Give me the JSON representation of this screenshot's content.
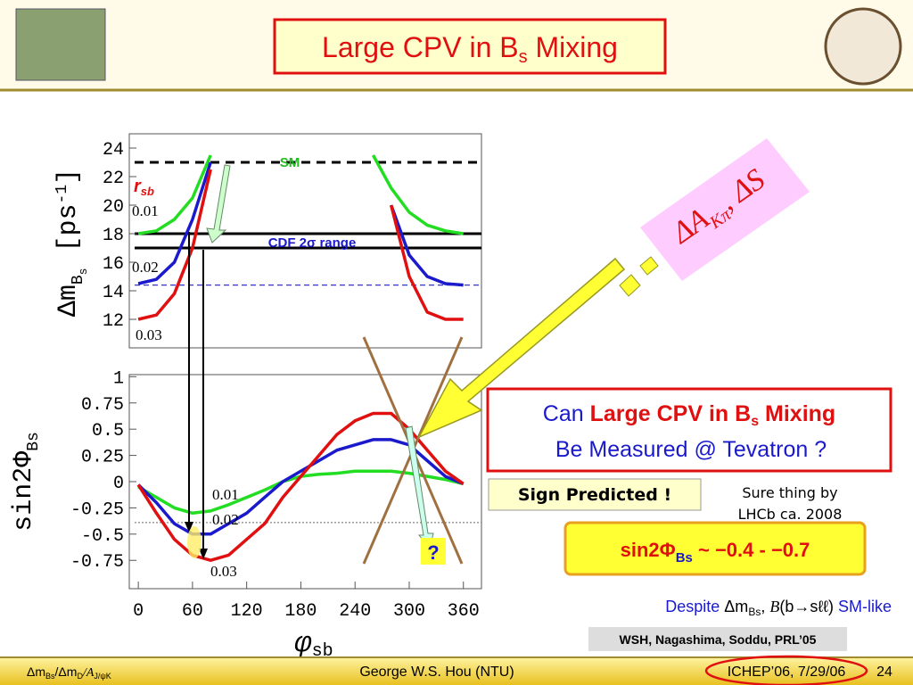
{
  "chart_data": [
    {
      "type": "line",
      "ylabel": {
        "main": "Δm",
        "sub": "B",
        "subsub": "s",
        "rest": " [ps",
        "sup": "-1",
        "end": "]"
      },
      "x": [
        0,
        20,
        40,
        60,
        80,
        100,
        120,
        140,
        160,
        180,
        200,
        220,
        240,
        260,
        280,
        300,
        320,
        340,
        360
      ],
      "xlim": [
        -10,
        380
      ],
      "ylim": [
        10,
        25
      ],
      "yticks": [
        12,
        14,
        16,
        18,
        20,
        22,
        24
      ],
      "series": [
        {
          "name": "0.01",
          "color": "#22dd22",
          "values": [
            18,
            18.2,
            19,
            20.5,
            23.5,
            null,
            null,
            null,
            null,
            null,
            null,
            null,
            null,
            23.5,
            21.2,
            19.5,
            18.6,
            18.2,
            18
          ]
        },
        {
          "name": "0.02",
          "color": "#1a1acc",
          "values": [
            14.5,
            14.8,
            16,
            19,
            23,
            null,
            null,
            null,
            null,
            null,
            null,
            null,
            null,
            null,
            20,
            16.5,
            15,
            14.5,
            14.4
          ]
        },
        {
          "name": "0.03",
          "color": "#e01010",
          "values": [
            12,
            12.3,
            13.8,
            17,
            22.5,
            null,
            null,
            null,
            null,
            null,
            null,
            null,
            null,
            null,
            20,
            15,
            12.5,
            12,
            12
          ]
        }
      ],
      "hlines": [
        {
          "value": 23,
          "color": "#000000",
          "dash": "10 7"
        },
        {
          "value": 18,
          "color": "#000000",
          "dash": ""
        },
        {
          "value": 17,
          "color": "#000000",
          "dash": ""
        },
        {
          "value": 14.4,
          "color": "#3333cc",
          "dash": "6 4"
        }
      ],
      "annotations": {
        "sm": "SM",
        "cdf": "CDF 2σ range",
        "r": "r",
        "rsub": "sb"
      }
    },
    {
      "type": "line",
      "ylabel": {
        "main": "sin2Φ",
        "sub": "Bs"
      },
      "xlabel": {
        "main": "φ",
        "sub": "sb"
      },
      "x": [
        0,
        20,
        40,
        60,
        80,
        100,
        120,
        140,
        160,
        180,
        200,
        220,
        240,
        260,
        280,
        300,
        320,
        340,
        360
      ],
      "xlim": [
        -10,
        380
      ],
      "ylim": [
        -1.02,
        1.02
      ],
      "xticks": [
        0,
        60,
        120,
        180,
        240,
        300,
        360
      ],
      "yticks": [
        1,
        0.75,
        0.5,
        0.25,
        0,
        -0.25,
        -0.5,
        -0.75
      ],
      "series": [
        {
          "name": "0.01",
          "color": "#22dd22",
          "values": [
            -0.05,
            -0.15,
            -0.25,
            -0.3,
            -0.28,
            -0.22,
            -0.15,
            -0.08,
            0,
            0.05,
            0.07,
            0.08,
            0.1,
            0.1,
            0.1,
            0.08,
            0.05,
            0.02,
            -0.02
          ]
        },
        {
          "name": "0.02",
          "color": "#1a1acc",
          "values": [
            -0.03,
            -0.2,
            -0.4,
            -0.5,
            -0.5,
            -0.4,
            -0.3,
            -0.15,
            0,
            0.1,
            0.2,
            0.3,
            0.35,
            0.4,
            0.4,
            0.35,
            0.2,
            0.05,
            -0.02
          ]
        },
        {
          "name": "0.03",
          "color": "#e01010",
          "values": [
            -0.03,
            -0.3,
            -0.55,
            -0.7,
            -0.75,
            -0.7,
            -0.55,
            -0.4,
            -0.15,
            0.05,
            0.25,
            0.45,
            0.58,
            0.65,
            0.65,
            0.5,
            0.3,
            0.1,
            -0.02
          ]
        }
      ],
      "hlines": [
        {
          "value": -0.39,
          "color": "#888888",
          "dash": "2 2"
        }
      ]
    }
  ],
  "slide": {
    "title": {
      "main": "Large CPV in B",
      "sub": "s",
      "rest": " Mixing"
    },
    "akpi": {
      "main": "ΔA",
      "sub": "Kπ",
      "rest": ", ΔS"
    },
    "question": {
      "can": "Can ",
      "bold": "Large CPV in B",
      "sub": "s",
      "rest": " Mixing",
      "line2": "Be Measured @ Tevatron ?"
    },
    "sign": "Sign Predicted !",
    "sure": [
      "Sure thing by",
      "LHCb ca. 2008"
    ],
    "range": {
      "main": "sin2Φ",
      "sub": "Bs",
      "rest": " ~ −0.4 - −0.7"
    },
    "qmark": "?",
    "despite": {
      "a": "Despite ",
      "b": "Δm",
      "bsub": "Bs",
      "c": ", ",
      "d": "B",
      "e": "(b→sℓℓ)",
      "f": " SM-like"
    },
    "ref": "WSH, Nagashima, Soddu, PRL’05",
    "footer": {
      "left": {
        "a": "Δm",
        "asub": "Bs",
        "b": "/Δm",
        "bsub": "D",
        "c": "/A",
        "csub": "J/ψK"
      },
      "center": "George W.S. Hou (NTU)",
      "right": "ICHEP’06, 7/29/06",
      "page": "24"
    }
  }
}
